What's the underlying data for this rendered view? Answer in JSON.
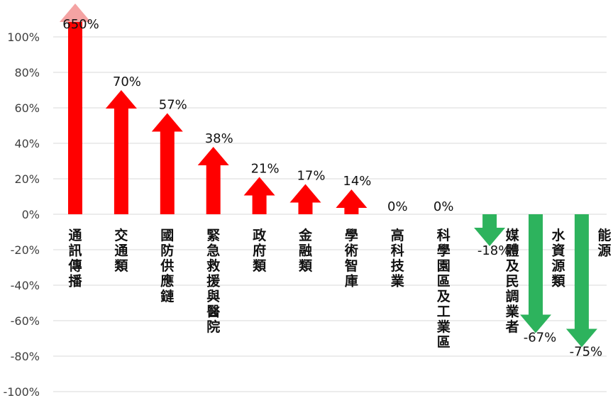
{
  "chart_data": {
    "type": "bar",
    "categories": [
      "通訊傳播",
      "交通類",
      "國防供應鏈",
      "緊急救援與醫院",
      "政府類",
      "金融類",
      "學術智庫",
      "高科技業",
      "科學園區及工業區",
      "媒體及民調業者",
      "水資源類",
      "能源"
    ],
    "values": [
      650,
      70,
      57,
      38,
      21,
      17,
      14,
      0,
      0,
      -18,
      -67,
      -75
    ],
    "data_labels": [
      "650%",
      "70%",
      "57%",
      "38%",
      "21%",
      "17%",
      "14%",
      "0%",
      "0%",
      "-18%",
      "-67%",
      "-75%"
    ],
    "ylim": [
      -100,
      100
    ],
    "yticks": [
      "100%",
      "80%",
      "60%",
      "40%",
      "20%",
      "0%",
      "-20%",
      "-40%",
      "-60%",
      "-80%",
      "-100%"
    ],
    "truncated_value_note": "first bar exceeds axis maximum",
    "grid": true,
    "legend": "none",
    "colors": {
      "increase": "#ff0000",
      "increase_overflow": "#f4a3a3",
      "decrease": "#2db35d",
      "grid": "#d9d9d9",
      "tick_text": "#404040"
    }
  }
}
